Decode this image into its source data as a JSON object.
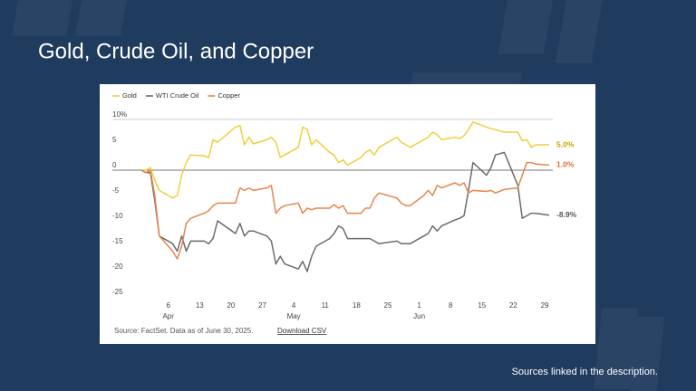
{
  "chart_data": {
    "type": "line",
    "title": "Gold, Crude Oil, and Copper",
    "x": [
      "Mar 31",
      "Apr 1",
      "Apr 2",
      "Apr 3",
      "Apr 4",
      "Apr 7",
      "Apr 8",
      "Apr 9",
      "Apr 10",
      "Apr 11",
      "Apr 14",
      "Apr 15",
      "Apr 16",
      "Apr 17",
      "Apr 21",
      "Apr 22",
      "Apr 23",
      "Apr 24",
      "Apr 25",
      "Apr 28",
      "Apr 29",
      "Apr 30",
      "May 1",
      "May 2",
      "May 5",
      "May 6",
      "May 7",
      "May 8",
      "May 9",
      "May 12",
      "May 13",
      "May 14",
      "May 15",
      "May 16",
      "May 19",
      "May 20",
      "May 21",
      "May 22",
      "May 23",
      "May 27",
      "May 28",
      "May 29",
      "May 30",
      "Jun 2",
      "Jun 3",
      "Jun 4",
      "Jun 5",
      "Jun 6",
      "Jun 9",
      "Jun 10",
      "Jun 11",
      "Jun 12",
      "Jun 13",
      "Jun 16",
      "Jun 17",
      "Jun 18",
      "Jun 20",
      "Jun 23",
      "Jun 24",
      "Jun 25",
      "Jun 26",
      "Jun 27",
      "Jun 30"
    ],
    "series": [
      {
        "name": "Gold",
        "color": "#f0cf3c",
        "label_color": "#c9a400",
        "end_label": "5.0%",
        "values": [
          0,
          0,
          0.5,
          -2,
          -4,
          -5.5,
          -5,
          -1,
          1.5,
          3,
          2.8,
          2.5,
          6,
          5.5,
          8.5,
          8.8,
          5,
          6.5,
          5.2,
          6,
          6.5,
          5.5,
          2.5,
          3,
          4.5,
          8.5,
          8,
          5,
          6,
          3.5,
          3,
          1.5,
          2,
          1,
          2.5,
          3.5,
          4,
          3,
          4.5,
          6.5,
          5.5,
          5,
          4.5,
          6,
          6.5,
          7.5,
          7,
          6,
          6.5,
          6.2,
          6.8,
          8,
          9.5,
          8.5,
          8.2,
          8,
          7.5,
          7.5,
          5.8,
          6,
          4.5,
          5,
          5.0
        ]
      },
      {
        "name": "WTI Crude Oil",
        "color": "#6b6b6b",
        "label_color": "#555555",
        "end_label": "-8.9%",
        "values": [
          0,
          -0.5,
          -0.5,
          -6,
          -13,
          -14.5,
          -16,
          -13,
          -16,
          -14,
          -14,
          -14.5,
          -13.5,
          -10,
          -12.5,
          -10.5,
          -13,
          -12,
          -12,
          -13,
          -14,
          -18.5,
          -17,
          -18.5,
          -19.5,
          -18,
          -20,
          -17,
          -15,
          -13.5,
          -12.5,
          -11,
          -11.5,
          -13.5,
          -13.5,
          -13.5,
          -13.5,
          -14,
          -14.5,
          -14,
          -14.5,
          -14.5,
          -14.5,
          -13,
          -12.5,
          -11,
          -12,
          -11,
          -9.8,
          -9.5,
          -9,
          -4,
          1.5,
          -1,
          0.5,
          3,
          3.5,
          -3,
          -9.5,
          -9,
          -8.5,
          -8.5,
          -8.9
        ]
      },
      {
        "name": "Copper",
        "color": "#e8844c",
        "label_color": "#dc6a2a",
        "end_label": "1.0%",
        "values": [
          0,
          -0.5,
          0,
          -5,
          -13,
          -16,
          -17.5,
          -15,
          -10.5,
          -9.5,
          -8.5,
          -8,
          -7,
          -6.5,
          -6.5,
          -3.5,
          -4,
          -3.5,
          -4,
          -3.5,
          -3,
          -8.5,
          -7.5,
          -7,
          -6.5,
          -8.5,
          -7.5,
          -7.8,
          -7.5,
          -7.5,
          -6.8,
          -7.5,
          -7,
          -8.5,
          -8.5,
          -7.5,
          -7.5,
          -5.5,
          -4.5,
          -5.5,
          -6.5,
          -7,
          -7,
          -5,
          -4,
          -5,
          -3,
          -3.5,
          -2.5,
          -3,
          -2.5,
          -4.5,
          -4,
          -4.2,
          -4,
          -4.5,
          -3.8,
          -3.5,
          -1,
          1.5,
          1.5,
          1.2,
          1.0
        ]
      }
    ],
    "xlim": [
      "Mar 31",
      "Jun 30"
    ],
    "xticks": [
      {
        "value": "Apr 6",
        "label": "6"
      },
      {
        "value": "Apr 13",
        "label": "13"
      },
      {
        "value": "Apr 20",
        "label": "20"
      },
      {
        "value": "Apr 27",
        "label": "27"
      },
      {
        "value": "May 4",
        "label": "4"
      },
      {
        "value": "May 11",
        "label": "11"
      },
      {
        "value": "May 18",
        "label": "18"
      },
      {
        "value": "May 25",
        "label": "25"
      },
      {
        "value": "Jun 1",
        "label": "1"
      },
      {
        "value": "Jun 8",
        "label": "8"
      },
      {
        "value": "Jun 15",
        "label": "15"
      },
      {
        "value": "Jun 22",
        "label": "22"
      },
      {
        "value": "Jun 29",
        "label": "29"
      }
    ],
    "month_labels": [
      {
        "value": "Apr 6",
        "label": "Apr"
      },
      {
        "value": "May 4",
        "label": "May"
      },
      {
        "value": "Jun 1",
        "label": "Jun"
      }
    ],
    "ylim": [
      -25,
      10
    ],
    "yticks": [
      {
        "value": 10,
        "label": "10%"
      },
      5,
      0,
      -5,
      -10,
      -15,
      -20,
      -25
    ],
    "source": "Source: FactSet. Data as of June 30, 2025.",
    "download": "Download CSV"
  },
  "slide": {
    "note": "Sources linked in the description."
  }
}
